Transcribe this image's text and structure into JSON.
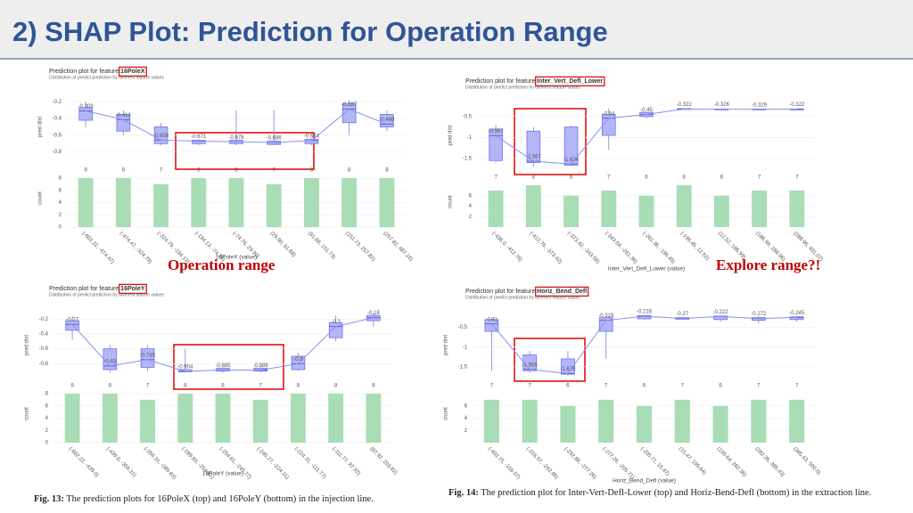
{
  "header": {
    "title": "2) SHAP Plot: Prediction for Operation Range"
  },
  "panels": [
    {
      "title": "Prediction plot for feature",
      "feature": "16PoleX",
      "subtitle": "Distribution of predict prediction by different feature values",
      "ylabel": "pred dist",
      "count_label": "count",
      "xlabel": "16PoleX (value)",
      "ylim": [
        -0.9,
        -0.1
      ],
      "yticks": [
        -0.2,
        -0.4,
        -0.6,
        -0.8
      ],
      "count_lim": [
        0,
        8
      ],
      "count_ticks": [
        0,
        2,
        4,
        6,
        8
      ],
      "bins": [
        "(-602.22, -474.47)",
        "(-474.47, -324.79)",
        "(-324.79, -194.13)",
        "(-194.13, -74.76)",
        "(-74.76, 29.90)",
        "(29.90, 91.68)",
        "(91.68, 151.73)",
        "(151.73, 257.82)",
        "(257.82, 487.16)"
      ],
      "counts": [
        8,
        8,
        7,
        8,
        8,
        7,
        8,
        8,
        8
      ],
      "boxes": [
        [
          -0.5,
          -0.42,
          -0.309,
          -0.27,
          -0.2
        ],
        [
          -0.6,
          -0.55,
          -0.412,
          -0.35,
          -0.3
        ],
        [
          -0.72,
          -0.7,
          -0.658,
          -0.5,
          -0.45
        ],
        [
          -0.72,
          -0.7,
          -0.671,
          -0.66,
          -0.65
        ],
        [
          -0.72,
          -0.7,
          -0.678,
          -0.66,
          -0.3
        ],
        [
          -0.72,
          -0.71,
          -0.686,
          -0.67,
          -0.3
        ],
        [
          -0.72,
          -0.7,
          -0.664,
          -0.65,
          -0.64
        ],
        [
          -0.6,
          -0.45,
          -0.287,
          -0.22,
          -0.18
        ],
        [
          -0.55,
          -0.5,
          -0.468,
          -0.35,
          -0.3
        ]
      ]
    },
    {
      "title": "Prediction plot for feature",
      "feature": "Inter_Vert_Defl_Lower",
      "subtitle": "Distribution of predict prediction by different feature values",
      "ylabel": "pred dist",
      "count_label": "count",
      "xlabel": "Inter_Vert_Defl_Lower (value)",
      "ylim": [
        -1.8,
        -0.1
      ],
      "yticks": [
        -0.5,
        -1,
        -1.5
      ],
      "count_lim": [
        0,
        8
      ],
      "count_ticks": [
        2,
        4,
        6
      ],
      "bins": [
        "(-436.0, -412.76)",
        "(-412.76, -373.42)",
        "(-373.42, -343.59)",
        "(-343.59, -261.36)",
        "(-261.36, -196.45)",
        "(-196.45, 12.52)",
        "(12.52, 186.99)",
        "(186.99, 288.96)",
        "(288.96, 491.07)"
      ],
      "counts": [
        7,
        8,
        6,
        7,
        6,
        8,
        6,
        7,
        7
      ],
      "boxes": [
        [
          -1.6,
          -1.55,
          -0.957,
          -0.8,
          -0.7
        ],
        [
          -1.7,
          -1.6,
          -1.567,
          -0.85,
          -0.75
        ],
        [
          -1.68,
          -1.66,
          -1.634,
          -0.75,
          -0.72
        ],
        [
          -1.3,
          -0.95,
          -0.54,
          -0.45,
          -0.3
        ],
        [
          -0.55,
          -0.5,
          -0.45,
          -0.4,
          -0.38
        ],
        [
          -0.34,
          -0.33,
          -0.322,
          -0.31,
          -0.3
        ],
        [
          -0.34,
          -0.33,
          -0.326,
          -0.32,
          -0.31
        ],
        [
          -0.34,
          -0.335,
          -0.329,
          -0.32,
          -0.31
        ],
        [
          -0.33,
          -0.325,
          -0.322,
          -0.32,
          -0.31
        ]
      ]
    },
    {
      "title": "Prediction plot for feature",
      "feature": "16PoleY",
      "subtitle": "Distribution of predict prediction by different feature values",
      "ylabel": "pred dist",
      "count_label": "count",
      "xlabel": "16PoleY (value)",
      "ylim": [
        -1.0,
        -0.1
      ],
      "yticks": [
        -0.2,
        -0.4,
        -0.6,
        -0.8
      ],
      "count_lim": [
        0,
        8
      ],
      "count_ticks": [
        0,
        2,
        4,
        6,
        8
      ],
      "bins": [
        "(-602.22, -439.0)",
        "(-439.0, -356.31)",
        "(-356.31, -289.83)",
        "(-289.83, -254.61)",
        "(-254.61, -245.77)",
        "(-245.77, -224.31)",
        "(-224.31, -111.77)",
        "(-111.77, 87.92)",
        "(87.92, 203.82)"
      ],
      "counts": [
        8,
        8,
        7,
        8,
        8,
        7,
        8,
        8,
        8
      ],
      "boxes": [
        [
          -0.48,
          -0.35,
          -0.27,
          -0.22,
          -0.16
        ],
        [
          -0.92,
          -0.88,
          -0.83,
          -0.6,
          -0.55
        ],
        [
          -0.9,
          -0.85,
          -0.745,
          -0.6,
          -0.55
        ],
        [
          -0.92,
          -0.91,
          -0.904,
          -0.88,
          -0.6
        ],
        [
          -0.92,
          -0.9,
          -0.885,
          -0.86,
          -0.85
        ],
        [
          -0.92,
          -0.9,
          -0.888,
          -0.86,
          -0.85
        ],
        [
          -0.9,
          -0.88,
          -0.8,
          -0.7,
          -0.65
        ],
        [
          -0.5,
          -0.45,
          -0.3,
          -0.25,
          -0.15
        ],
        [
          -0.3,
          -0.22,
          -0.18,
          -0.15,
          -0.12
        ]
      ]
    },
    {
      "title": "Prediction plot for feature",
      "feature": "Horiz_Bend_Defl",
      "subtitle": "Distribution of predict prediction by different feature values",
      "ylabel": "pred dist",
      "count_label": "count",
      "xlabel": "Horiz_Bend_Defl (value)",
      "ylim": [
        -1.8,
        -0.1
      ],
      "yticks": [
        -0.5,
        -1,
        -1.5
      ],
      "count_lim": [
        0,
        8
      ],
      "count_ticks": [
        2,
        4,
        6
      ],
      "bins": [
        "(-403.75, -316.57)",
        "(-316.57, -292.86)",
        "(-292.86, -277.26)",
        "(-277.26, -205.71)",
        "(-205.71, 15.47)",
        "(15.47, 195.64)",
        "(195.64, 282.36)",
        "(282.36, 385.43)",
        "(385.43, 500.0)"
      ],
      "counts": [
        7,
        7,
        6,
        7,
        6,
        7,
        6,
        7,
        7
      ],
      "boxes": [
        [
          -1.6,
          -0.6,
          -0.41,
          -0.3,
          -0.25
        ],
        [
          -1.65,
          -1.6,
          -1.568,
          -1.2,
          -1.1
        ],
        [
          -1.72,
          -1.69,
          -1.676,
          -1.3,
          -1.1
        ],
        [
          -1.3,
          -0.6,
          -0.319,
          -0.25,
          -0.22
        ],
        [
          -0.3,
          -0.28,
          -0.216,
          -0.2,
          -0.19
        ],
        [
          -0.3,
          -0.29,
          -0.27,
          -0.25,
          -0.24
        ],
        [
          -0.35,
          -0.3,
          -0.222,
          -0.21,
          -0.2
        ],
        [
          -0.4,
          -0.32,
          -0.272,
          -0.25,
          -0.22
        ],
        [
          -0.35,
          -0.3,
          -0.245,
          -0.23,
          -0.22
        ]
      ]
    }
  ],
  "annotations": {
    "left": "Operation range",
    "right": "Explore range?!"
  },
  "captions": [
    {
      "label": "Fig. 13:",
      "text": "The prediction plots for 16PoleX (top) and 16PoleY (bottom) in the injection line."
    },
    {
      "label": "Fig. 14:",
      "text": "The prediction plot for Inter-Vert-Defl-Lower (top) and Horiz-Bend-Defl (bottom) in the extraction line."
    }
  ]
}
